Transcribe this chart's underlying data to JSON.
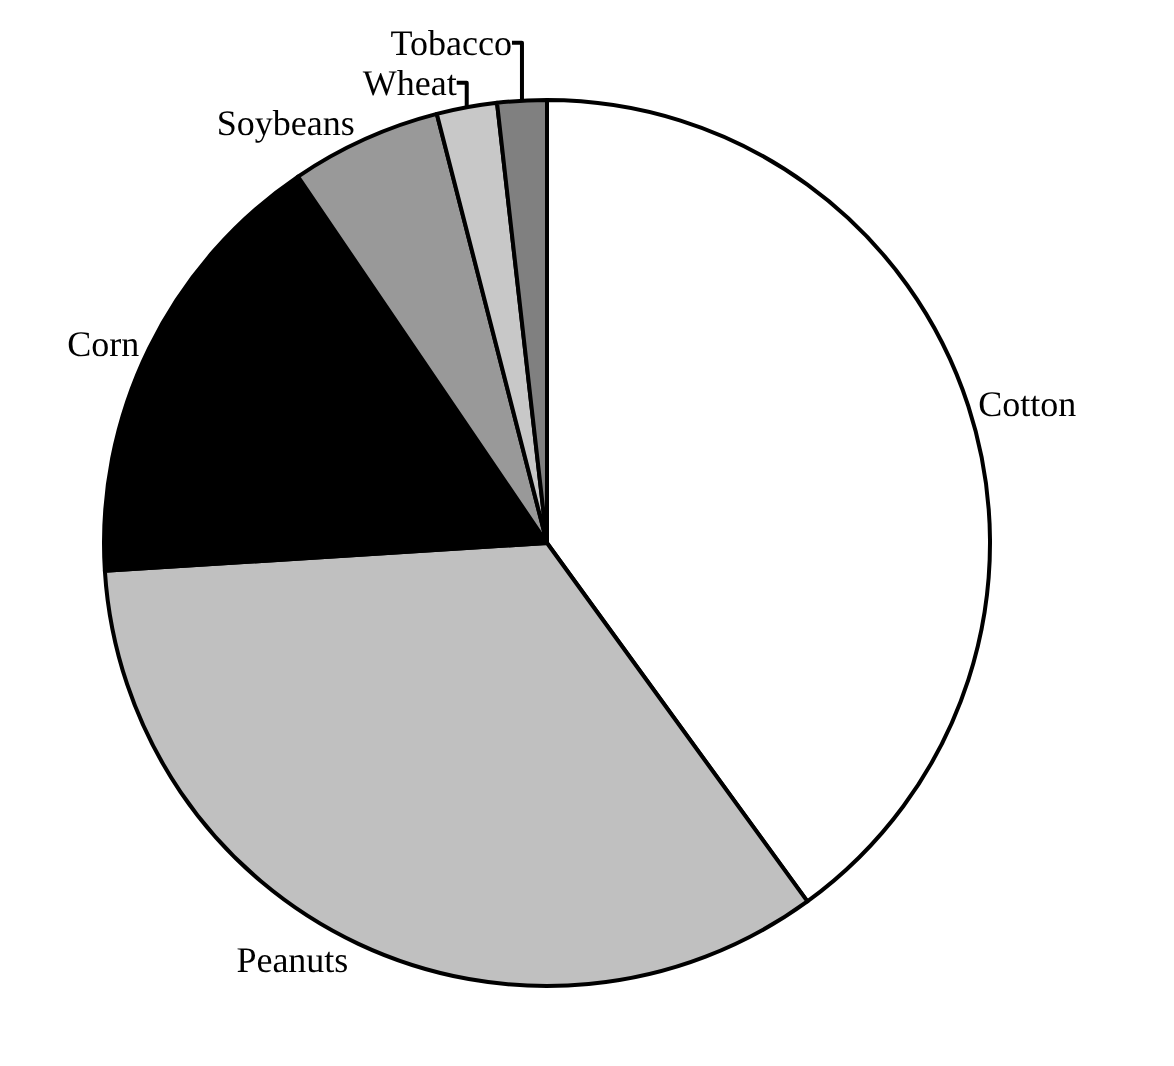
{
  "chart_data": {
    "type": "pie",
    "categories": [
      "Cotton",
      "Peanuts",
      "Corn",
      "Soybeans",
      "Wheat",
      "Tobacco"
    ],
    "values": [
      40,
      34,
      16.5,
      5.5,
      2.2,
      1.8
    ],
    "colors": [
      "#ffffff",
      "#c0c0c0",
      "#000000",
      "#999999",
      "#c8c8c8",
      "#808080"
    ],
    "legend": false
  }
}
